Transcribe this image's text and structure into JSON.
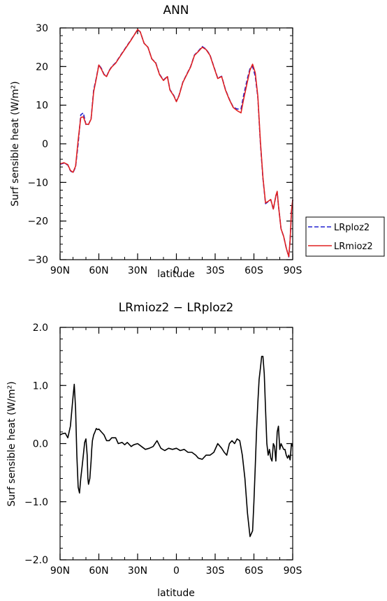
{
  "chart_data": [
    {
      "type": "line",
      "title": "ANN",
      "xlabel": "latitude",
      "ylabel": "Surf sensible heat (W/m²)",
      "xlim": [
        90,
        -90
      ],
      "ylim": [
        -30,
        30
      ],
      "xtick_values": [
        90,
        60,
        30,
        0,
        -30,
        -60,
        -90
      ],
      "xtick_labels": [
        "90N",
        "60N",
        "30N",
        "0",
        "30S",
        "60S",
        "90S"
      ],
      "ytick_values": [
        30,
        20,
        10,
        0,
        -10,
        -20,
        -30
      ],
      "ytick_labels": [
        "30",
        "20",
        "10",
        "0",
        "−10",
        "−20",
        "−30"
      ],
      "legend": {
        "placement": "right",
        "entries": [
          "LRploz2",
          "LRmioz2"
        ]
      },
      "series": [
        {
          "name": "LRploz2",
          "color": "#2020d0",
          "dash": "dashed",
          "x": [
            90,
            87,
            84,
            82,
            80,
            78,
            76,
            74,
            72,
            70,
            68,
            66,
            64,
            62,
            60,
            58,
            56,
            54,
            52,
            50,
            47,
            44,
            41,
            38,
            35,
            32,
            30,
            28,
            25,
            22,
            19,
            16,
            13,
            10,
            7,
            5,
            2,
            0,
            -2,
            -5,
            -8,
            -11,
            -14,
            -17,
            -20,
            -23,
            -26,
            -29,
            -32,
            -35,
            -38,
            -41,
            -44,
            -47,
            -50,
            -52,
            -55,
            -57,
            -59,
            -61,
            -63,
            -65,
            -67,
            -69,
            -71,
            -73,
            -75,
            -77,
            -78,
            -79,
            -81,
            -83,
            -85,
            -87,
            -88,
            -89,
            -90
          ],
          "y": [
            -5.3,
            -5.0,
            -5.5,
            -7.0,
            -7.5,
            -6.0,
            0.0,
            7.5,
            8.0,
            5.0,
            5.0,
            6.5,
            14.0,
            17.0,
            20.5,
            19.5,
            18.0,
            17.5,
            19.0,
            20.0,
            21.0,
            22.5,
            24.0,
            25.5,
            27.0,
            28.5,
            29.5,
            29.0,
            26.0,
            25.0,
            22.0,
            21.0,
            18.0,
            16.5,
            17.5,
            14.0,
            12.5,
            11.0,
            12.5,
            16.0,
            18.0,
            20.0,
            23.0,
            24.0,
            25.2,
            24.5,
            23.0,
            20.0,
            17.0,
            17.5,
            14.0,
            11.5,
            9.5,
            9.0,
            9.0,
            12.5,
            17.0,
            19.5,
            20.0,
            17.5,
            12.0,
            0.0,
            -9.0,
            -15.5,
            -15.0,
            -14.5,
            -17.0,
            -13.5,
            -12.5,
            -16.0,
            -22.0,
            -24.0,
            -27.0,
            -29.3,
            -25.0,
            -17.5,
            -14.5
          ]
        },
        {
          "name": "LRmioz2",
          "color": "#e02020",
          "dash": "solid",
          "x": [
            90,
            87,
            84,
            82,
            80,
            78,
            76,
            74,
            72,
            70,
            68,
            66,
            64,
            62,
            60,
            58,
            56,
            54,
            52,
            50,
            47,
            44,
            41,
            38,
            35,
            32,
            30,
            28,
            25,
            22,
            19,
            16,
            13,
            10,
            7,
            5,
            2,
            0,
            -2,
            -5,
            -8,
            -11,
            -14,
            -17,
            -20,
            -23,
            -26,
            -29,
            -32,
            -35,
            -38,
            -41,
            -44,
            -47,
            -50,
            -52,
            -55,
            -57,
            -59,
            -61,
            -63,
            -65,
            -67,
            -69,
            -71,
            -73,
            -75,
            -77,
            -78,
            -79,
            -81,
            -83,
            -85,
            -87,
            -88,
            -89,
            -90
          ],
          "y": [
            -5.2,
            -4.9,
            -5.4,
            -6.9,
            -7.4,
            -5.8,
            1.0,
            6.8,
            7.0,
            5.1,
            5.0,
            6.4,
            13.5,
            16.8,
            20.4,
            19.3,
            17.9,
            17.4,
            18.9,
            19.9,
            20.9,
            22.4,
            23.9,
            25.4,
            26.9,
            28.5,
            29.6,
            29.0,
            26.0,
            25.0,
            22.0,
            20.9,
            17.9,
            16.4,
            17.4,
            13.9,
            12.4,
            10.9,
            12.4,
            15.9,
            17.9,
            19.9,
            22.9,
            23.9,
            25.0,
            24.4,
            22.9,
            19.9,
            16.9,
            17.4,
            13.9,
            11.4,
            9.4,
            8.6,
            8.0,
            11.5,
            16.2,
            19.1,
            20.6,
            18.4,
            12.3,
            0.5,
            -8.7,
            -15.3,
            -14.9,
            -14.4,
            -16.9,
            -13.4,
            -12.3,
            -16.0,
            -22.0,
            -24.0,
            -27.0,
            -29.2,
            -25.0,
            -17.4,
            -14.5
          ]
        }
      ]
    },
    {
      "type": "line",
      "title": "LRmioz2 − LRploz2",
      "xlabel": "latitude",
      "ylabel": "Surf sensible heat (W/m²)",
      "xlim": [
        90,
        -90
      ],
      "ylim": [
        -2.0,
        2.0
      ],
      "xtick_values": [
        90,
        60,
        30,
        0,
        -30,
        -60,
        -90
      ],
      "xtick_labels": [
        "90N",
        "60N",
        "30N",
        "0",
        "30S",
        "60S",
        "90S"
      ],
      "ytick_values": [
        2.0,
        1.0,
        0.0,
        -1.0,
        -2.0
      ],
      "ytick_labels": [
        "2.0",
        "1.0",
        "0.0",
        "−1.0",
        "−2.0"
      ],
      "series": [
        {
          "color": "#000000",
          "dash": "solid",
          "x": [
            90,
            88,
            86,
            84,
            82,
            80,
            79,
            78,
            77,
            76,
            75,
            74,
            73,
            72,
            71,
            70,
            69,
            68.5,
            68,
            67,
            66,
            65.5,
            65,
            64,
            63,
            62,
            61,
            60,
            58,
            56,
            54,
            52,
            50,
            47,
            45,
            42,
            40,
            38,
            35,
            33,
            30,
            27,
            24,
            21,
            18,
            15,
            12,
            9,
            6,
            3,
            0,
            -3,
            -6,
            -9,
            -12,
            -15,
            -17,
            -20,
            -23,
            -26,
            -29,
            -32,
            -35,
            -37,
            -39,
            -41,
            -43,
            -45,
            -47,
            -49,
            -51,
            -53,
            -55,
            -57,
            -59,
            -60,
            -61,
            -62,
            -63,
            -64,
            -65,
            -66,
            -67,
            -68,
            -69,
            -70,
            -71,
            -72,
            -73,
            -74,
            -75,
            -76,
            -77,
            -78,
            -79,
            -80,
            -81,
            -82,
            -83,
            -84,
            -85,
            -86,
            -87,
            -88,
            -89,
            -90
          ],
          "y": [
            0.15,
            0.17,
            0.18,
            0.1,
            0.3,
            0.8,
            1.02,
            0.6,
            -0.2,
            -0.75,
            -0.85,
            -0.6,
            -0.4,
            -0.2,
            0.02,
            0.08,
            -0.2,
            -0.6,
            -0.7,
            -0.6,
            -0.3,
            -0.1,
            0.05,
            0.15,
            0.2,
            0.26,
            0.24,
            0.25,
            0.2,
            0.15,
            0.05,
            0.05,
            0.1,
            0.1,
            0.0,
            0.02,
            -0.02,
            0.02,
            -0.05,
            -0.02,
            0.0,
            -0.05,
            -0.1,
            -0.08,
            -0.05,
            0.05,
            -0.08,
            -0.12,
            -0.08,
            -0.1,
            -0.08,
            -0.12,
            -0.1,
            -0.15,
            -0.15,
            -0.2,
            -0.25,
            -0.27,
            -0.2,
            -0.2,
            -0.15,
            0.0,
            -0.08,
            -0.15,
            -0.2,
            0.0,
            0.05,
            0.0,
            0.08,
            0.05,
            -0.2,
            -0.6,
            -1.2,
            -1.6,
            -1.5,
            -1.0,
            -0.4,
            0.2,
            0.7,
            1.1,
            1.3,
            1.5,
            1.5,
            1.2,
            0.6,
            0.0,
            -0.2,
            -0.1,
            -0.25,
            -0.3,
            0.0,
            -0.05,
            -0.3,
            0.2,
            0.3,
            -0.1,
            0.0,
            -0.05,
            -0.1,
            -0.1,
            -0.2,
            -0.25,
            -0.2,
            -0.28,
            0.0,
            -0.05
          ]
        }
      ]
    }
  ]
}
